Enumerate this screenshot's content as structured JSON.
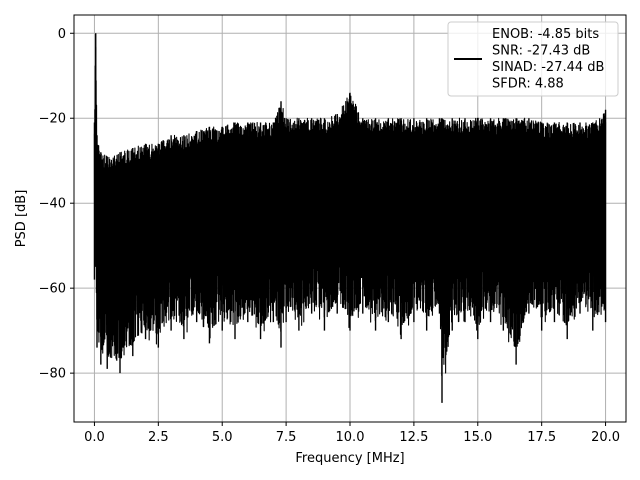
{
  "chart_data": {
    "type": "line",
    "xlabel": "Frequency [MHz]",
    "ylabel": "PSD [dB]",
    "xlim": [
      -0.8,
      20.8
    ],
    "ylim": [
      -91.5,
      4.3
    ],
    "x_ticks": [
      0.0,
      2.5,
      5.0,
      7.5,
      10.0,
      12.5,
      15.0,
      17.5,
      20.0
    ],
    "x_tick_labels": [
      "0.0",
      "2.5",
      "5.0",
      "7.5",
      "10.0",
      "12.5",
      "15.0",
      "17.5",
      "20.0"
    ],
    "y_ticks": [
      0,
      -20,
      -40,
      -60,
      -80
    ],
    "y_tick_labels": [
      "0",
      "−20",
      "−40",
      "−60",
      "−80"
    ],
    "grid": true,
    "legend_position": "top-right",
    "series": [
      {
        "name": "ENOB: -4.85 bits\nSNR: -27.43 dB\nSINAD: -27.44 dB\nSFDR: 4.88",
        "color": "#000000",
        "style": "noisy spectrum, dense fill",
        "x": [
          0.0,
          0.05,
          0.1,
          0.25,
          0.5,
          1.0,
          1.5,
          2.0,
          2.5,
          3.0,
          3.5,
          4.0,
          4.5,
          5.0,
          5.5,
          6.0,
          6.5,
          7.0,
          7.3,
          7.5,
          8.0,
          8.5,
          9.0,
          9.5,
          10.0,
          10.5,
          11.0,
          11.5,
          12.0,
          12.5,
          13.0,
          13.5,
          13.6,
          14.0,
          14.5,
          15.0,
          15.5,
          16.0,
          16.5,
          17.0,
          17.5,
          18.0,
          18.5,
          19.0,
          19.5,
          20.0
        ],
        "upper_db": [
          -21,
          0,
          -24,
          -28,
          -29,
          -28,
          -27,
          -26,
          -26,
          -24,
          -24,
          -23,
          -22,
          -22,
          -21,
          -21,
          -21,
          -21,
          -16,
          -20,
          -20,
          -20,
          -20,
          -19,
          -14,
          -20,
          -20,
          -20,
          -20,
          -20,
          -20,
          -20,
          -20,
          -20,
          -20,
          -20,
          -20,
          -20,
          -20,
          -20,
          -21,
          -21,
          -21,
          -21,
          -21,
          -18
        ],
        "lower_db": [
          -58,
          -55,
          -74,
          -78,
          -79,
          -80,
          -76,
          -72,
          -74,
          -70,
          -72,
          -68,
          -73,
          -70,
          -72,
          -68,
          -72,
          -68,
          -74,
          -68,
          -70,
          -66,
          -70,
          -66,
          -70,
          -66,
          -70,
          -68,
          -72,
          -68,
          -70,
          -66,
          -87,
          -70,
          -68,
          -72,
          -68,
          -70,
          -78,
          -66,
          -70,
          -68,
          -72,
          -66,
          -70,
          -68
        ]
      }
    ]
  }
}
